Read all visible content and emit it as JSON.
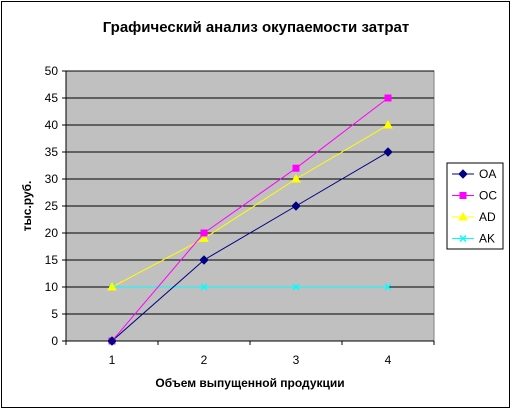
{
  "chart_data": {
    "type": "line",
    "title": "Графический анализ окупаемости затрат",
    "xlabel": "Объем выпущенной продукции",
    "ylabel": "тыс.руб.",
    "x": [
      1,
      2,
      3,
      4
    ],
    "ylim": [
      0,
      50
    ],
    "yticks": [
      0,
      5,
      10,
      15,
      20,
      25,
      30,
      35,
      40,
      45,
      50
    ],
    "grid": true,
    "plot_background": "#c0c0c0",
    "legend_position": "right",
    "series": [
      {
        "name": "OA",
        "values": [
          0,
          15,
          25,
          35
        ],
        "color": "#000080",
        "marker": "diamond"
      },
      {
        "name": "OC",
        "values": [
          0,
          20,
          32,
          45
        ],
        "color": "#ff00ff",
        "marker": "square"
      },
      {
        "name": "AD",
        "values": [
          10,
          19,
          30,
          40
        ],
        "color": "#ffff00",
        "marker": "triangle"
      },
      {
        "name": "AK",
        "values": [
          10,
          10,
          10,
          10
        ],
        "color": "#00ffff",
        "marker": "x"
      }
    ]
  }
}
